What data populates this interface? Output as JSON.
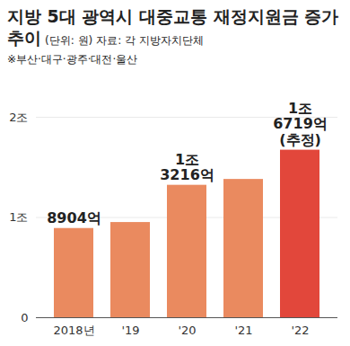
{
  "chart_data": {
    "type": "bar",
    "title": "지방 5대 광역시 대중교통 재정지원금 증가 추이",
    "subtitle": "(단위: 원)",
    "source": "자료: 각 지방자치단체",
    "note": "※부산·대구·광주·대전·울산",
    "categories": [
      "2018년",
      "'19",
      "'20",
      "'21",
      "'22"
    ],
    "values": [
      0.8904,
      0.95,
      1.3216,
      1.38,
      1.6719
    ],
    "value_labels": [
      "8904억",
      null,
      "1조\n3216억",
      null,
      "1조\n6719억\n(추정)"
    ],
    "data_labels": true,
    "colors": [
      "#ea8a5f",
      "#ea8a5f",
      "#ea8a5f",
      "#ea8a5f",
      "#e2473b"
    ],
    "ylim": [
      0,
      2
    ],
    "yticks": [
      0,
      {
        "value": 1,
        "label": "1조"
      },
      {
        "value": 2,
        "label": "2조"
      }
    ],
    "grid": true
  }
}
